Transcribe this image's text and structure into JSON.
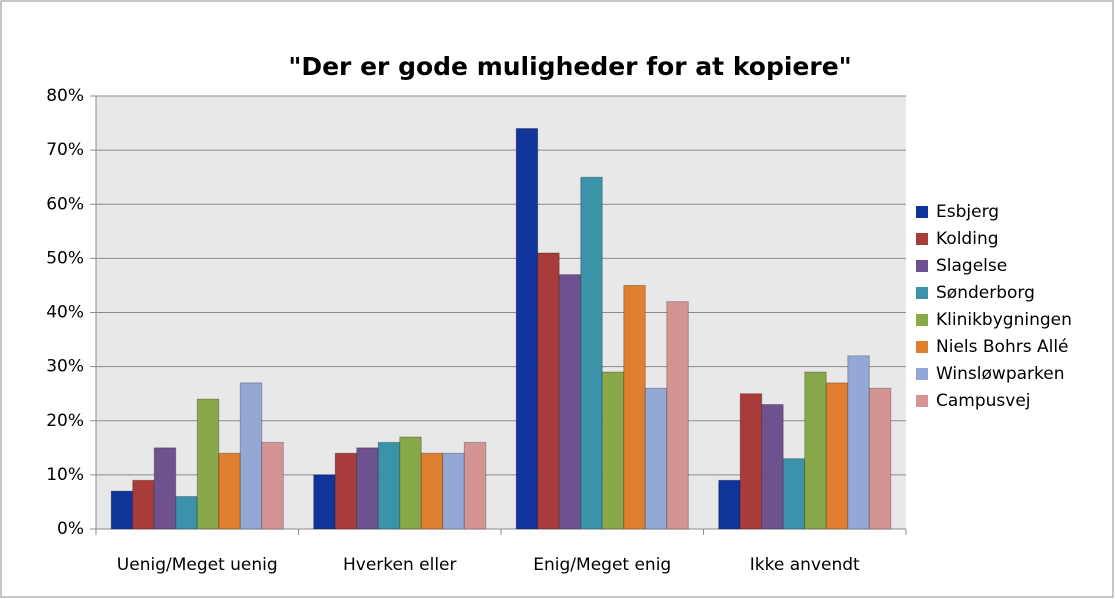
{
  "chart_data": {
    "type": "bar",
    "title": "\"Der er gode muligheder for at kopiere\"",
    "categories": [
      "Uenig/Meget uenig",
      "Hverken eller",
      "Enig/Meget enig",
      "Ikke anvendt"
    ],
    "series": [
      {
        "name": "Esbjerg",
        "color": "#10349a",
        "values": [
          7,
          10,
          74,
          9
        ]
      },
      {
        "name": "Kolding",
        "color": "#a83c3a",
        "values": [
          9,
          14,
          51,
          25
        ]
      },
      {
        "name": "Slagelse",
        "color": "#6e528f",
        "values": [
          15,
          15,
          47,
          23
        ]
      },
      {
        "name": "Sønderborg",
        "color": "#3a93a8",
        "values": [
          6,
          16,
          65,
          13
        ]
      },
      {
        "name": "Klinikbygningen",
        "color": "#88a84a",
        "values": [
          24,
          17,
          29,
          29
        ]
      },
      {
        "name": "Niels Bohrs Allé",
        "color": "#e07f2f",
        "values": [
          14,
          14,
          45,
          27
        ]
      },
      {
        "name": "Winsløwparken",
        "color": "#93a8d4",
        "values": [
          27,
          14,
          26,
          32
        ]
      },
      {
        "name": "Campusvej",
        "color": "#d49494",
        "values": [
          16,
          16,
          42,
          26
        ]
      }
    ],
    "ylim": [
      0,
      80
    ],
    "yticks": [
      {
        "value": 0,
        "label": "0%"
      },
      {
        "value": 10,
        "label": "10%"
      },
      {
        "value": 20,
        "label": "20%"
      },
      {
        "value": 30,
        "label": "30%"
      },
      {
        "value": 40,
        "label": "40%"
      },
      {
        "value": 50,
        "label": "50%"
      },
      {
        "value": 60,
        "label": "60%"
      },
      {
        "value": 70,
        "label": "70%"
      },
      {
        "value": 80,
        "label": "80%"
      }
    ],
    "grid": true,
    "legend": "right"
  }
}
